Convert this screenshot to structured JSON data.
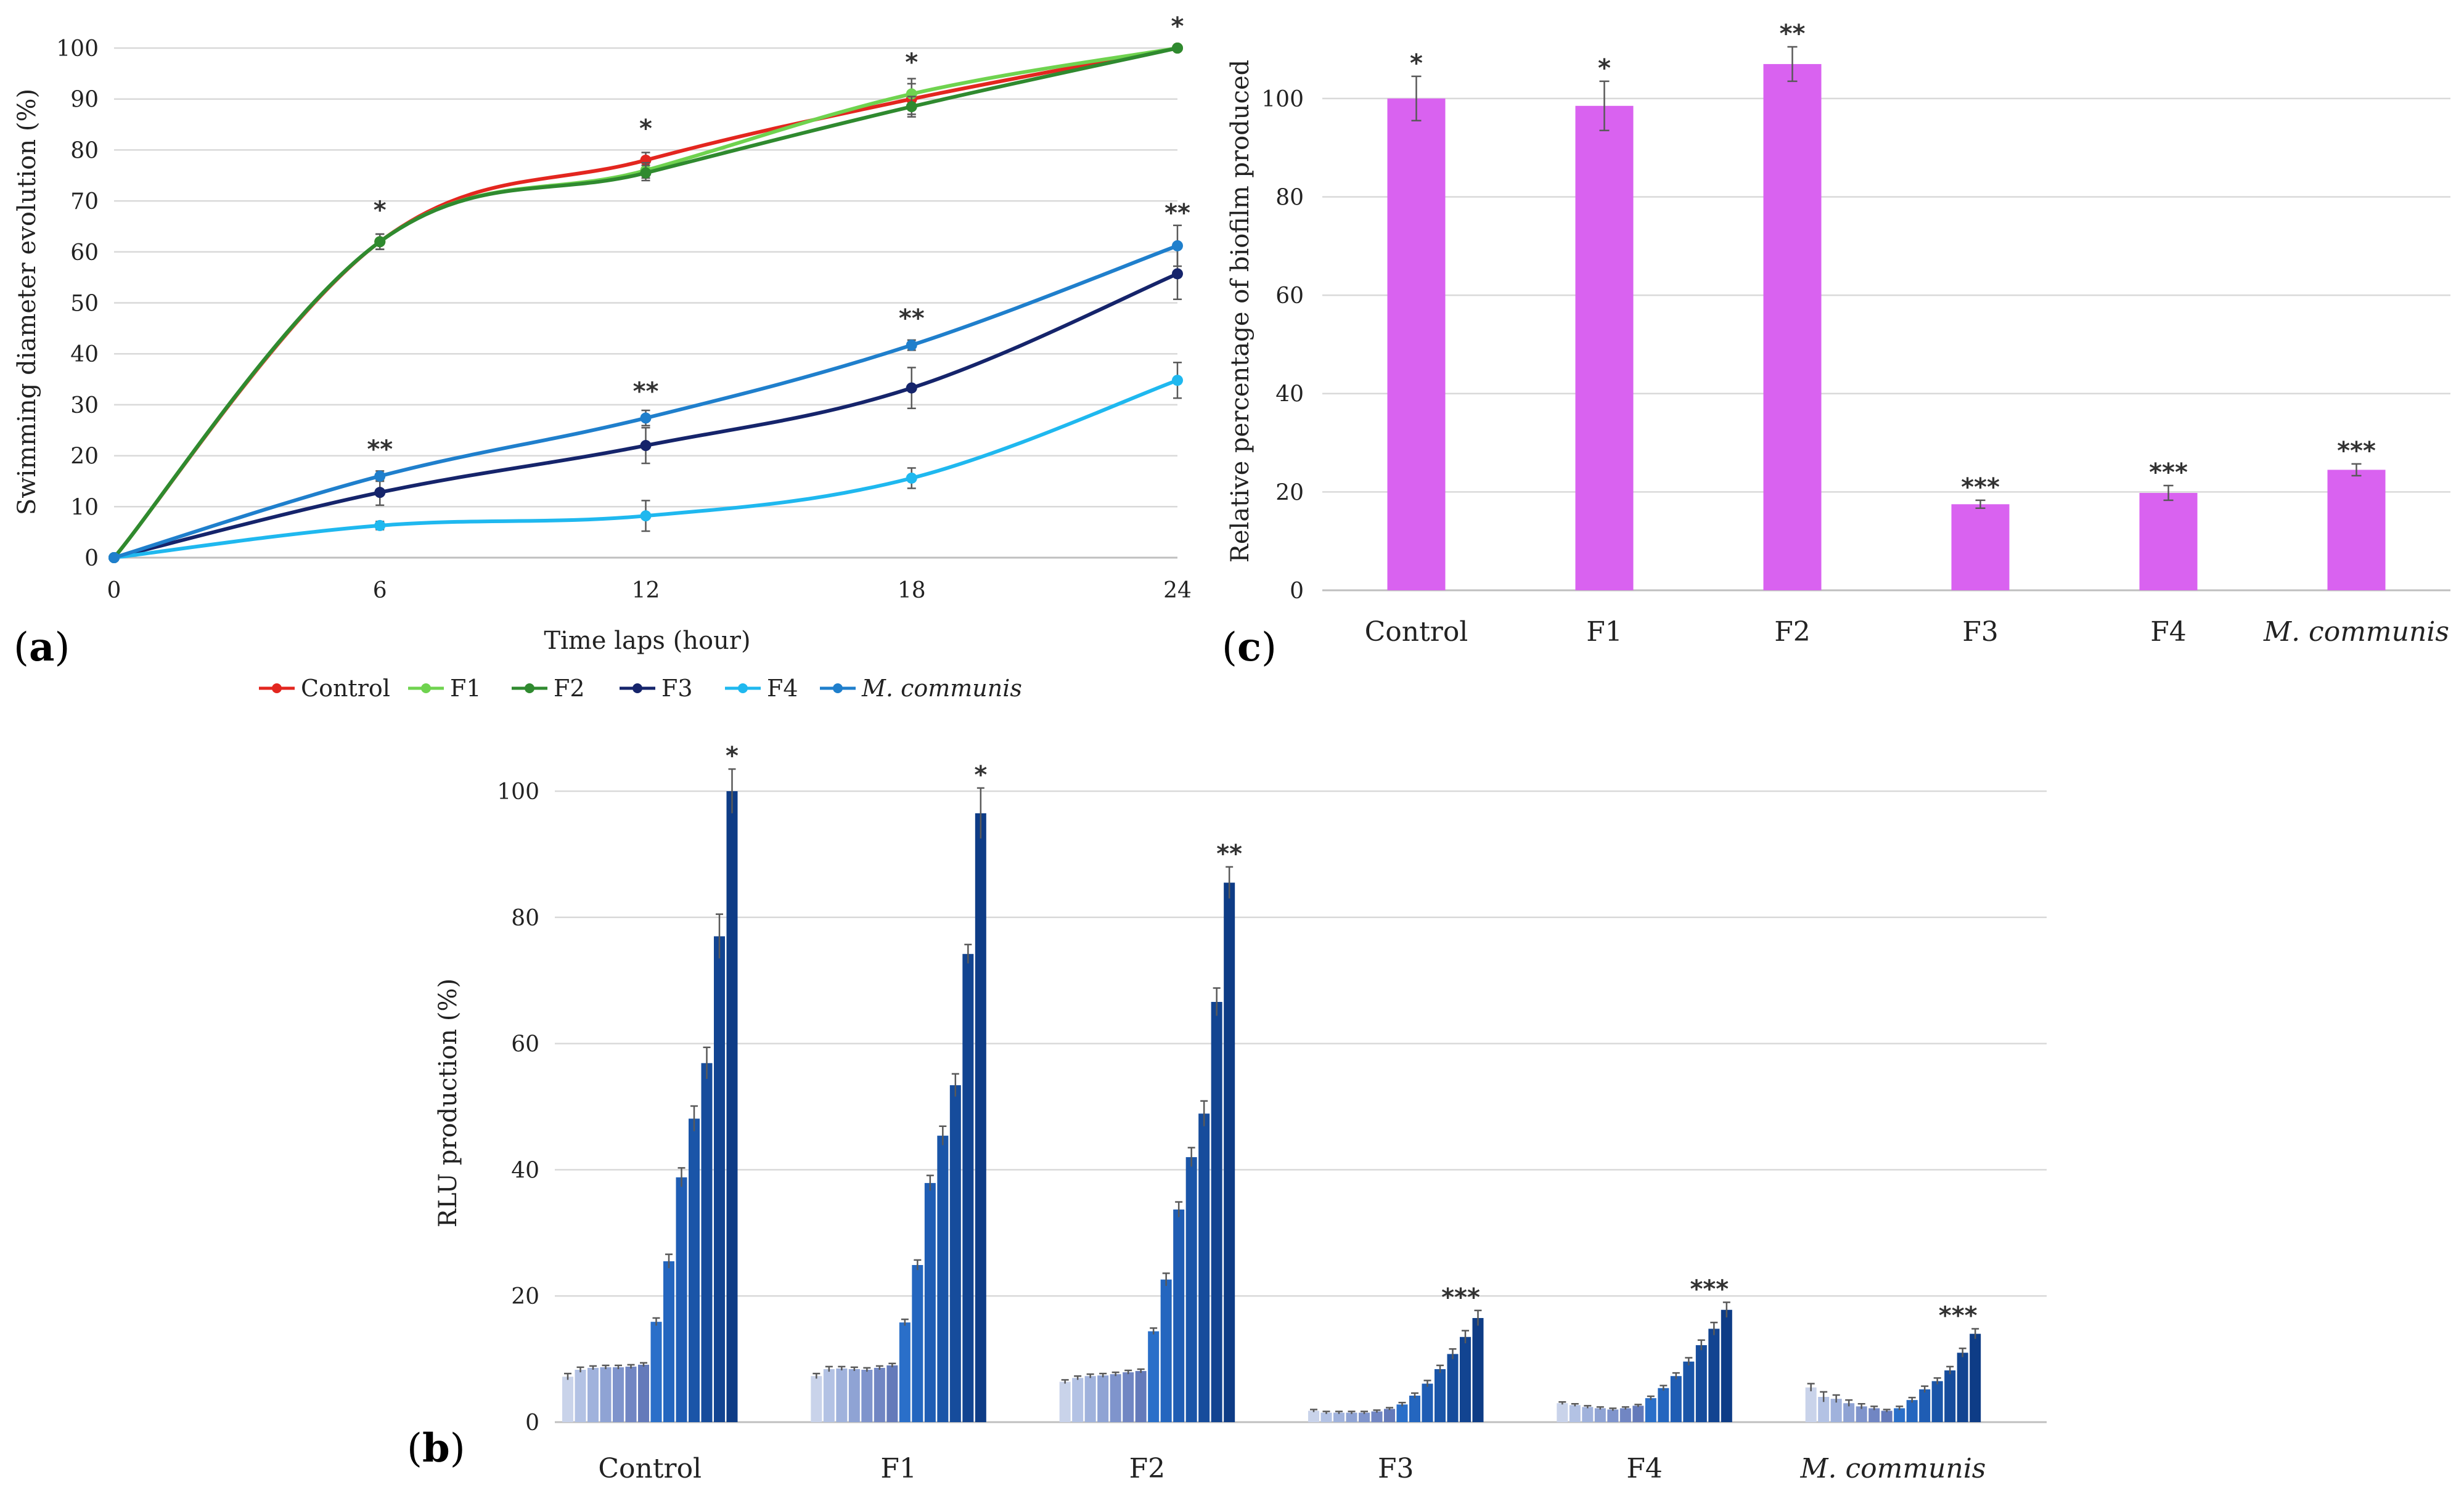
{
  "panels": {
    "a": "a",
    "b": "b",
    "c": "c"
  },
  "chart_data": [
    {
      "id": "a",
      "type": "line",
      "title": "",
      "xlabel": "Time laps (hour)",
      "ylabel": "Swimming diameter evolution (%)",
      "x": [
        0,
        6,
        12,
        18,
        24
      ],
      "xticks": [
        "0",
        "6",
        "12",
        "18",
        "24"
      ],
      "ylim": [
        0,
        100
      ],
      "yticks": [
        "0",
        "10",
        "20",
        "30",
        "40",
        "50",
        "60",
        "70",
        "80",
        "90",
        "100"
      ],
      "grid": true,
      "legend_position": "bottom",
      "series": [
        {
          "name": "Control",
          "color": "#e3261f",
          "values": [
            0,
            62,
            78,
            90,
            100
          ],
          "err": [
            0,
            1.5,
            1.5,
            3,
            0
          ]
        },
        {
          "name": "F1",
          "color": "#6fd34f",
          "values": [
            0,
            62,
            76,
            91,
            100
          ],
          "err": [
            0,
            1.5,
            1.5,
            3,
            0
          ]
        },
        {
          "name": "F2",
          "color": "#2f8a2f",
          "values": [
            0,
            62,
            75.5,
            88.5,
            100
          ],
          "err": [
            0,
            1.5,
            1.5,
            2,
            0
          ]
        },
        {
          "name": "F3",
          "color": "#15246b",
          "values": [
            0,
            12.8,
            22,
            33.3,
            55.7
          ],
          "err": [
            0,
            2.5,
            3.5,
            4,
            5
          ]
        },
        {
          "name": "F4",
          "color": "#1fb8ef",
          "values": [
            0,
            6.3,
            8.2,
            15.6,
            34.8
          ],
          "err": [
            0,
            0.8,
            3,
            2,
            3.5
          ]
        },
        {
          "name": "M. communis",
          "color": "#1f7fcc",
          "values": [
            0,
            16,
            27.4,
            41.7,
            61.2
          ],
          "err": [
            0,
            1,
            1.5,
            1,
            4
          ]
        }
      ],
      "annotations": [
        {
          "x": 6,
          "text": "*"
        },
        {
          "x": 12,
          "text": "*"
        },
        {
          "x": 18,
          "text": "*"
        },
        {
          "x": 24,
          "text": "*"
        },
        {
          "x": 6,
          "text": "**"
        },
        {
          "x": 12,
          "text": "**"
        },
        {
          "x": 18,
          "text": "**"
        },
        {
          "x": 24,
          "text": "**"
        }
      ]
    },
    {
      "id": "c",
      "type": "bar",
      "title": "",
      "xlabel": "",
      "ylabel": "Relative percentage of biofilm produced",
      "categories": [
        "Control",
        "F1",
        "F2",
        "F3",
        "F4",
        "M. communis"
      ],
      "italic_categories": [
        "M. communis"
      ],
      "values": [
        100,
        98.5,
        107,
        17.5,
        19.8,
        24.5
      ],
      "err": [
        4.5,
        5,
        3.5,
        0.8,
        1.5,
        1.2
      ],
      "stars": [
        "*",
        "*",
        "**",
        "***",
        "***",
        "***"
      ],
      "ylim": [
        0,
        110
      ],
      "yticks": [
        "0",
        "20",
        "40",
        "60",
        "80",
        "100"
      ],
      "color": "#d962f0",
      "grid": true
    },
    {
      "id": "b",
      "type": "bar",
      "title": "",
      "xlabel": "",
      "ylabel": "RLU production (%)",
      "categories": [
        "Control",
        "F1",
        "F2",
        "F3",
        "F4",
        "M. communis"
      ],
      "italic_categories": [
        "M. communis"
      ],
      "bars_per_group": 14,
      "groups": [
        {
          "name": "Control",
          "values": [
            7.2,
            8.3,
            8.6,
            8.7,
            8.7,
            8.8,
            9.1,
            15.9,
            25.5,
            38.8,
            48.1,
            56.9,
            77,
            100
          ],
          "err": [
            0.5,
            0.4,
            0.3,
            0.3,
            0.3,
            0.3,
            0.3,
            0.6,
            1.1,
            1.5,
            2,
            2.5,
            3.5,
            3.5
          ],
          "star": "*"
        },
        {
          "name": "F1",
          "values": [
            7.3,
            8.4,
            8.5,
            8.4,
            8.3,
            8.6,
            9,
            15.8,
            24.9,
            37.9,
            45.4,
            53.4,
            74.2,
            96.5
          ],
          "err": [
            0.4,
            0.4,
            0.3,
            0.3,
            0.3,
            0.3,
            0.3,
            0.5,
            0.8,
            1.2,
            1.5,
            1.8,
            1.5,
            4
          ],
          "star": "*"
        },
        {
          "name": "F2",
          "values": [
            6.4,
            7,
            7.3,
            7.4,
            7.6,
            7.9,
            8.1,
            14.4,
            22.6,
            33.7,
            42,
            48.9,
            66.6,
            85.5
          ],
          "err": [
            0.3,
            0.3,
            0.3,
            0.3,
            0.3,
            0.3,
            0.3,
            0.5,
            1,
            1.2,
            1.5,
            2,
            2.2,
            2.5
          ],
          "star": "**"
        },
        {
          "name": "F3",
          "values": [
            1.8,
            1.5,
            1.5,
            1.5,
            1.5,
            1.7,
            2.1,
            2.8,
            4.2,
            6.1,
            8.4,
            10.8,
            13.5,
            16.5
          ],
          "err": [
            0.2,
            0.2,
            0.2,
            0.2,
            0.2,
            0.2,
            0.2,
            0.3,
            0.4,
            0.5,
            0.6,
            0.8,
            1,
            1.2
          ],
          "star": "***"
        },
        {
          "name": "F4",
          "values": [
            3,
            2.7,
            2.4,
            2.2,
            2,
            2.2,
            2.6,
            3.8,
            5.4,
            7.3,
            9.6,
            12.2,
            14.8,
            17.8
          ],
          "err": [
            0.2,
            0.2,
            0.2,
            0.2,
            0.2,
            0.2,
            0.2,
            0.3,
            0.4,
            0.5,
            0.6,
            0.8,
            1,
            1.2
          ],
          "star": "***"
        },
        {
          "name": "M. communis",
          "values": [
            5.5,
            4,
            3.7,
            3,
            2.5,
            2.2,
            1.8,
            2.2,
            3.5,
            5.2,
            6.5,
            8.2,
            11,
            14
          ],
          "err": [
            0.6,
            0.8,
            0.6,
            0.5,
            0.4,
            0.3,
            0.2,
            0.3,
            0.4,
            0.5,
            0.5,
            0.6,
            0.7,
            0.8
          ],
          "star": "***"
        }
      ],
      "ylim": [
        0,
        100
      ],
      "yticks": [
        "0",
        "20",
        "40",
        "60",
        "80",
        "100"
      ],
      "bar_colors": [
        "#c9d3ea",
        "#b3c2e4",
        "#a0b2dc",
        "#8fa3d4",
        "#7f94cc",
        "#7186c3",
        "#647aba",
        "#2a6fc9",
        "#2466bf",
        "#1f5db4",
        "#1a55a8",
        "#164c9c",
        "#124491",
        "#0e3c86"
      ],
      "grid": true
    }
  ]
}
